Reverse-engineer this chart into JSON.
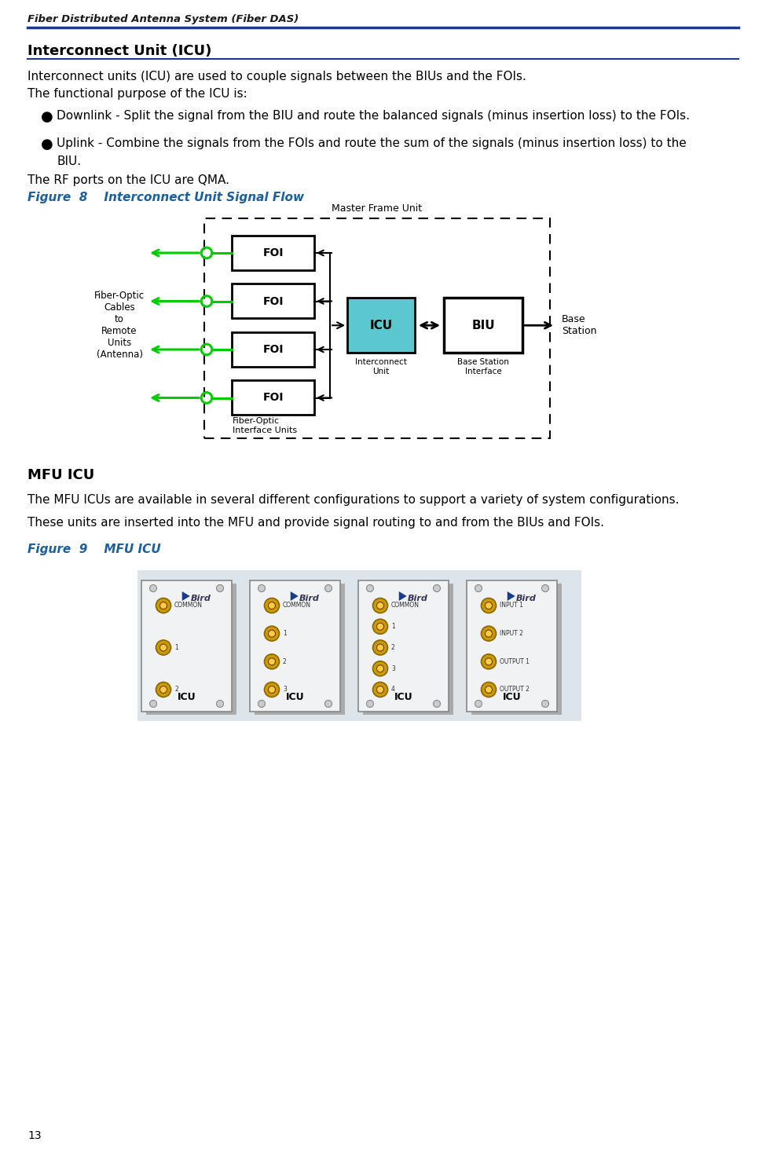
{
  "header_text": "Fiber Distributed Antenna System (Fiber DAS)",
  "page_number": "13",
  "section_title": "Interconnect Unit (ICU)",
  "para1": "Interconnect units (ICU) are used to couple signals between the BIUs and the FOIs.",
  "para2": "The functional purpose of the ICU is:",
  "bullet1": "Downlink - Split the signal from the BIU and route the balanced signals (minus insertion loss) to the FOIs.",
  "bullet2_line1": "Uplink - Combine the signals from the FOIs and route the sum of the signals (minus insertion loss) to the",
  "bullet2_line2": "BIU.",
  "para3": "The RF ports on the ICU are QMA.",
  "fig8_caption": "Figure  8    Interconnect Unit Signal Flow",
  "mfu_title": "MFU ICU",
  "mfu_para1": "The MFU ICUs are available in several different configurations to support a variety of system configurations.",
  "mfu_para2": "These units are inserted into the MFU and provide signal routing to and from the BIUs and FOIs.",
  "fig9_caption": "Figure  9    MFU ICU",
  "header_color": "#1a1a1a",
  "header_line_color": "#1a3a8c",
  "section_title_color": "#000000",
  "fig_caption_color": "#1a5fa0",
  "body_text_color": "#000000",
  "icu_fill_color": "#5bc8d0",
  "diagram_box_color": "#000000",
  "arrow_green": "#00cc00",
  "arrow_black": "#000000",
  "dash_border_color": "#000000",
  "background_color": "#ffffff"
}
